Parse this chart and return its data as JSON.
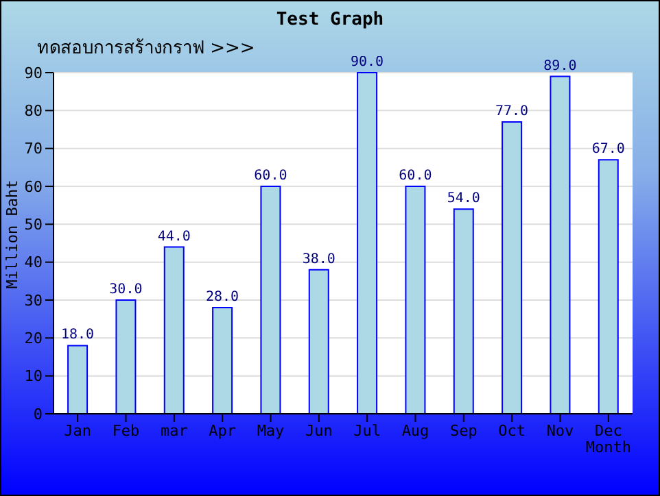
{
  "chart_data": {
    "type": "bar",
    "title": "Test Graph",
    "subtitle": "ทดสอบการสร้างกราฟ >>>",
    "xlabel": "Month",
    "ylabel": "Million Baht",
    "categories": [
      "Jan",
      "Feb",
      "mar",
      "Apr",
      "May",
      "Jun",
      "Jul",
      "Aug",
      "Sep",
      "Oct",
      "Nov",
      "Dec"
    ],
    "values": [
      18,
      30,
      44,
      28,
      60,
      38,
      90,
      60,
      54,
      77,
      89,
      67
    ],
    "color": "#add8e6",
    "value_labels": [
      "18.0",
      "30.0",
      "44.0",
      "28.0",
      "60.0",
      "38.0",
      "90.0",
      "60.0",
      "54.0",
      "77.0",
      "89.0",
      "67.0"
    ],
    "ylim": [
      0,
      90
    ],
    "yticks": [
      0,
      10,
      20,
      30,
      40,
      50,
      60,
      70,
      80,
      90
    ],
    "grid": "y"
  }
}
